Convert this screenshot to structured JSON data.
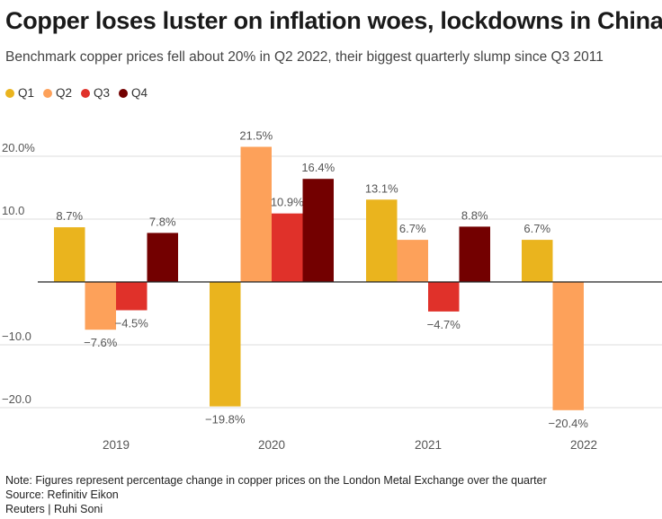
{
  "header": {
    "title": "Copper loses luster on inflation woes, lockdowns in China",
    "subtitle": "Benchmark copper prices fell about 20% in Q2 2022, their biggest quarterly slump since Q3 2011"
  },
  "legend": [
    {
      "label": "Q1",
      "color": "#eab41e"
    },
    {
      "label": "Q2",
      "color": "#fda15a"
    },
    {
      "label": "Q3",
      "color": "#e0312a"
    },
    {
      "label": "Q4",
      "color": "#730000"
    }
  ],
  "chart_data": {
    "type": "bar",
    "title": "Copper loses luster on inflation woes, lockdowns in China",
    "xlabel": "",
    "ylabel": "",
    "categories": [
      "2019",
      "2020",
      "2021",
      "2022"
    ],
    "series": [
      {
        "name": "Q1",
        "values": [
          8.7,
          -19.8,
          13.1,
          6.7
        ],
        "labels": [
          "8.7%",
          "−19.8%",
          "13.1%",
          "6.7%"
        ]
      },
      {
        "name": "Q2",
        "values": [
          -7.6,
          21.5,
          6.7,
          -20.4
        ],
        "labels": [
          "−7.6%",
          "21.5%",
          "6.7%",
          "−20.4%"
        ]
      },
      {
        "name": "Q3",
        "values": [
          -4.5,
          10.9,
          -4.7,
          null
        ],
        "labels": [
          "−4.5%",
          "10.9%",
          "−4.7%",
          ""
        ]
      },
      {
        "name": "Q4",
        "values": [
          7.8,
          16.4,
          8.8,
          null
        ],
        "labels": [
          "7.8%",
          "16.4%",
          "8.8%",
          ""
        ]
      }
    ],
    "yticks": [
      20,
      10,
      -10,
      -20
    ],
    "ytick_labels": [
      "20.0%",
      "10.0",
      "−10.0",
      "−20.0"
    ],
    "ylim": [
      -25,
      25
    ],
    "grid": true
  },
  "footer": {
    "note": "Note: Figures represent percentage change in copper prices on the London Metal Exchange over the quarter",
    "source": "Source: Refinitiv Eikon",
    "credit": "Reuters | Ruhi Soni"
  }
}
